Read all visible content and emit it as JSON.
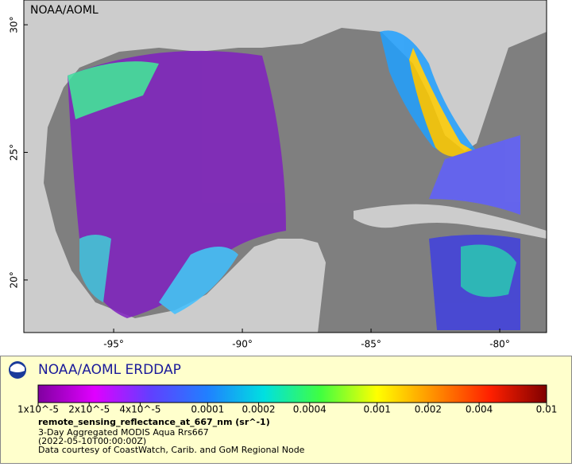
{
  "map": {
    "credit": "NOAA/AOML",
    "xlim": [
      -98.49,
      -78.18
    ],
    "ylim": [
      17.94,
      30.97
    ],
    "xticks": [
      {
        "value": -95,
        "label": "-95°"
      },
      {
        "value": -90,
        "label": "-90°"
      },
      {
        "value": -85,
        "label": "-85°"
      },
      {
        "value": -80,
        "label": "-80°"
      }
    ],
    "yticks": [
      {
        "value": 20,
        "label": "20°"
      },
      {
        "value": 25,
        "label": "25°"
      },
      {
        "value": 30,
        "label": "30°"
      }
    ],
    "ocean_color": "#7f7f7f",
    "land_color": "#cccccc"
  },
  "legend": {
    "title": "NOAA/AOML ERDDAP",
    "colorbar": {
      "log_scale": true,
      "lim": [
        1e-05,
        0.01
      ],
      "ticks": [
        {
          "value": 1e-05,
          "label": "1x10^-5"
        },
        {
          "value": 2e-05,
          "label": "2x10^-5"
        },
        {
          "value": 4e-05,
          "label": "4x10^-5"
        },
        0.0001,
        0.0002,
        0.0004,
        0.001,
        0.002,
        0.004,
        0.01
      ],
      "colors": [
        "#8000a0",
        "#e000ff",
        "#6040ff",
        "#2080ff",
        "#00e0e0",
        "#40ff40",
        "#ffff00",
        "#ff9000",
        "#ff2000",
        "#800000"
      ]
    },
    "variable": "remote_sensing_reflectance_at_667_nm (sr^-1)",
    "lines": [
      "3-Day Aggregated MODIS Aqua Rrs667",
      "(2022-05-10T00:00:00Z)",
      "Data courtesy of CoastWatch, Carib. and GoM Regional Node"
    ]
  }
}
